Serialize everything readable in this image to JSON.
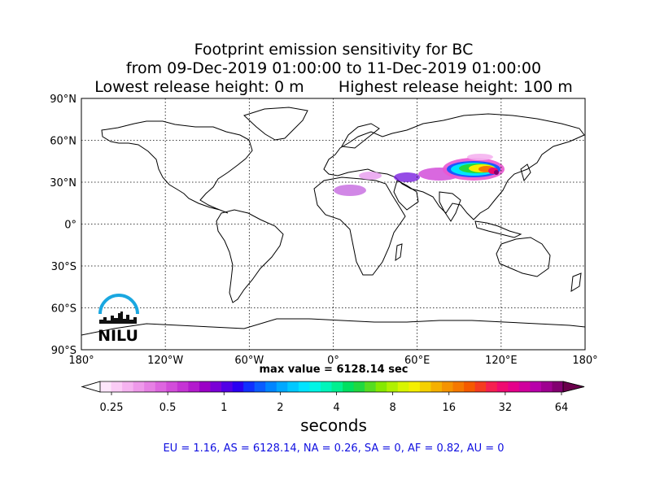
{
  "title": {
    "line1": "Footprint emission sensitivity for BC",
    "line2": "from 09-Dec-2019 01:00:00 to 11-Dec-2019 01:00:00",
    "line3": "Lowest release height: 0 m       Highest release height: 100 m"
  },
  "map": {
    "lat_labels": [
      "90°N",
      "60°N",
      "30°N",
      "0°",
      "30°S",
      "60°S",
      "90°S"
    ],
    "lon_labels": [
      "180°",
      "120°W",
      "60°W",
      "0°",
      "60°E",
      "120°E",
      "180°"
    ],
    "grid": true,
    "logo_text": "NILU",
    "max_value_text": "max value = 6128.14 sec"
  },
  "colorbar": {
    "tick_labels": [
      "0.25",
      "0.5",
      "1",
      "2",
      "4",
      "8",
      "16",
      "32",
      "64"
    ],
    "units": "seconds",
    "colors": [
      "#fde6fb",
      "#fbccf6",
      "#f5b3f0",
      "#ee99ea",
      "#e680e4",
      "#dd66df",
      "#d24dd9",
      "#c533d4",
      "#b31acd",
      "#9b00c6",
      "#7a00d6",
      "#5200e6",
      "#2a00f2",
      "#1030ff",
      "#0a5cff",
      "#0085ff",
      "#00a8ff",
      "#00c8ff",
      "#00e4ff",
      "#00f5e6",
      "#00f5bb",
      "#00f090",
      "#00e060",
      "#20d840",
      "#55dc20",
      "#85e800",
      "#b0f000",
      "#d8f500",
      "#f5ef00",
      "#f5d000",
      "#f5b000",
      "#f59300",
      "#f57800",
      "#f55a00",
      "#f53c20",
      "#f52050",
      "#ef0a70",
      "#e5008a",
      "#d0009d",
      "#b800aa",
      "#9e0090",
      "#820070"
    ],
    "arrow_max_color": "#6a004c"
  },
  "stats_line": "EU = 1.16,  AS = 6128.14,  NA = 0.26,  SA = 0,  AF = 0.82,  AU = 0"
}
